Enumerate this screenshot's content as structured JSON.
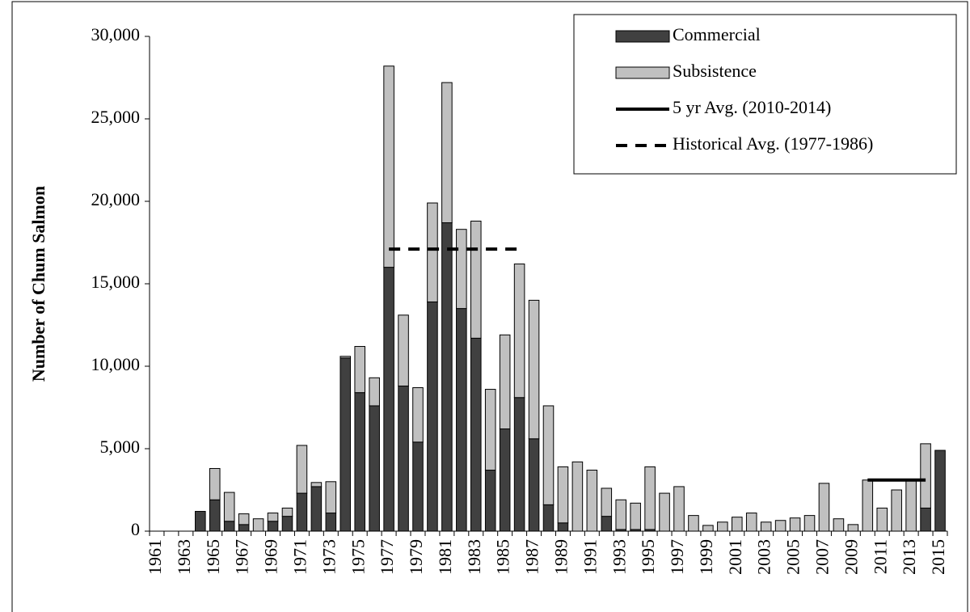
{
  "chart_data": {
    "type": "bar",
    "stacked": true,
    "y_label": "Number of Chum Salmon",
    "legend": "upper right",
    "categories": [
      "1961",
      null,
      "1963",
      null,
      "1965",
      null,
      "1967",
      null,
      "1969",
      null,
      "1971",
      null,
      "1973",
      null,
      "1975",
      null,
      "1977",
      null,
      "1979",
      null,
      "1981",
      null,
      "1983",
      null,
      "1985",
      null,
      "1987",
      null,
      "1989",
      null,
      "1991",
      null,
      "1993",
      null,
      "1995",
      null,
      "1997",
      null,
      "1999",
      null,
      "2001",
      null,
      "2003",
      null,
      "2005",
      null,
      "2007",
      null,
      "2009",
      null,
      "2011",
      null,
      "2013",
      null,
      "2015"
    ],
    "series": [
      {
        "name": "Commercial",
        "type": "bar",
        "color": "#404040",
        "values": [
          0,
          0,
          0,
          1200,
          1900,
          600,
          400,
          0,
          600,
          900,
          2300,
          2700,
          1100,
          10500,
          8400,
          7600,
          16000,
          8800,
          5400,
          13900,
          18700,
          13500,
          11700,
          3700,
          6200,
          8100,
          5600,
          1600,
          500,
          0,
          0,
          900,
          100,
          100,
          100,
          0,
          0,
          0,
          0,
          0,
          0,
          0,
          0,
          0,
          0,
          0,
          0,
          0,
          0,
          0,
          0,
          0,
          0,
          1400,
          4900
        ]
      },
      {
        "name": "Subsistence",
        "type": "bar",
        "color": "#c0c0c0",
        "values": [
          0,
          0,
          0,
          0,
          1900,
          1750,
          650,
          750,
          500,
          500,
          2900,
          250,
          1900,
          100,
          2800,
          1700,
          12200,
          4300,
          3300,
          6000,
          8500,
          4800,
          7100,
          4900,
          5700,
          8100,
          8400,
          6000,
          3400,
          4200,
          3700,
          1700,
          1800,
          1600,
          3800,
          2300,
          2700,
          950,
          350,
          550,
          850,
          1100,
          550,
          650,
          800,
          950,
          2900,
          750,
          400,
          3100,
          1400,
          2500,
          3100,
          3900,
          0
        ]
      },
      {
        "name": "5 yr Avg. (2010-2014)",
        "type": "line",
        "dashed": false,
        "color": "#000000",
        "values": [
          null,
          null,
          null,
          null,
          null,
          null,
          null,
          null,
          null,
          null,
          null,
          null,
          null,
          null,
          null,
          null,
          null,
          null,
          null,
          null,
          null,
          null,
          null,
          null,
          null,
          null,
          null,
          null,
          null,
          null,
          null,
          null,
          null,
          null,
          null,
          null,
          null,
          null,
          null,
          null,
          null,
          null,
          null,
          null,
          null,
          null,
          null,
          null,
          null,
          3100,
          3100,
          3100,
          3100,
          3100,
          null
        ]
      },
      {
        "name": "Historical Avg. (1977-1986)",
        "type": "line",
        "dashed": true,
        "color": "#000000",
        "values": [
          null,
          null,
          null,
          null,
          null,
          null,
          null,
          null,
          null,
          null,
          null,
          null,
          null,
          null,
          null,
          null,
          17100,
          17100,
          17100,
          17100,
          17100,
          17100,
          17100,
          17100,
          17100,
          17100,
          null,
          null,
          null,
          null,
          null,
          null,
          null,
          null,
          null,
          null,
          null,
          null,
          null,
          null,
          null,
          null,
          null,
          null,
          null,
          null,
          null,
          null,
          null,
          null,
          null,
          null,
          null,
          null,
          null
        ]
      }
    ],
    "ylim": [
      0,
      30000
    ],
    "yticks": [
      0,
      {
        "value": 5000,
        "label": "5,000"
      },
      {
        "value": 10000,
        "label": "10,000"
      },
      {
        "value": 15000,
        "label": "15,000"
      },
      {
        "value": 20000,
        "label": "20,000"
      },
      {
        "value": 25000,
        "label": "25,000"
      },
      {
        "value": 30000,
        "label": "30,000"
      }
    ]
  }
}
